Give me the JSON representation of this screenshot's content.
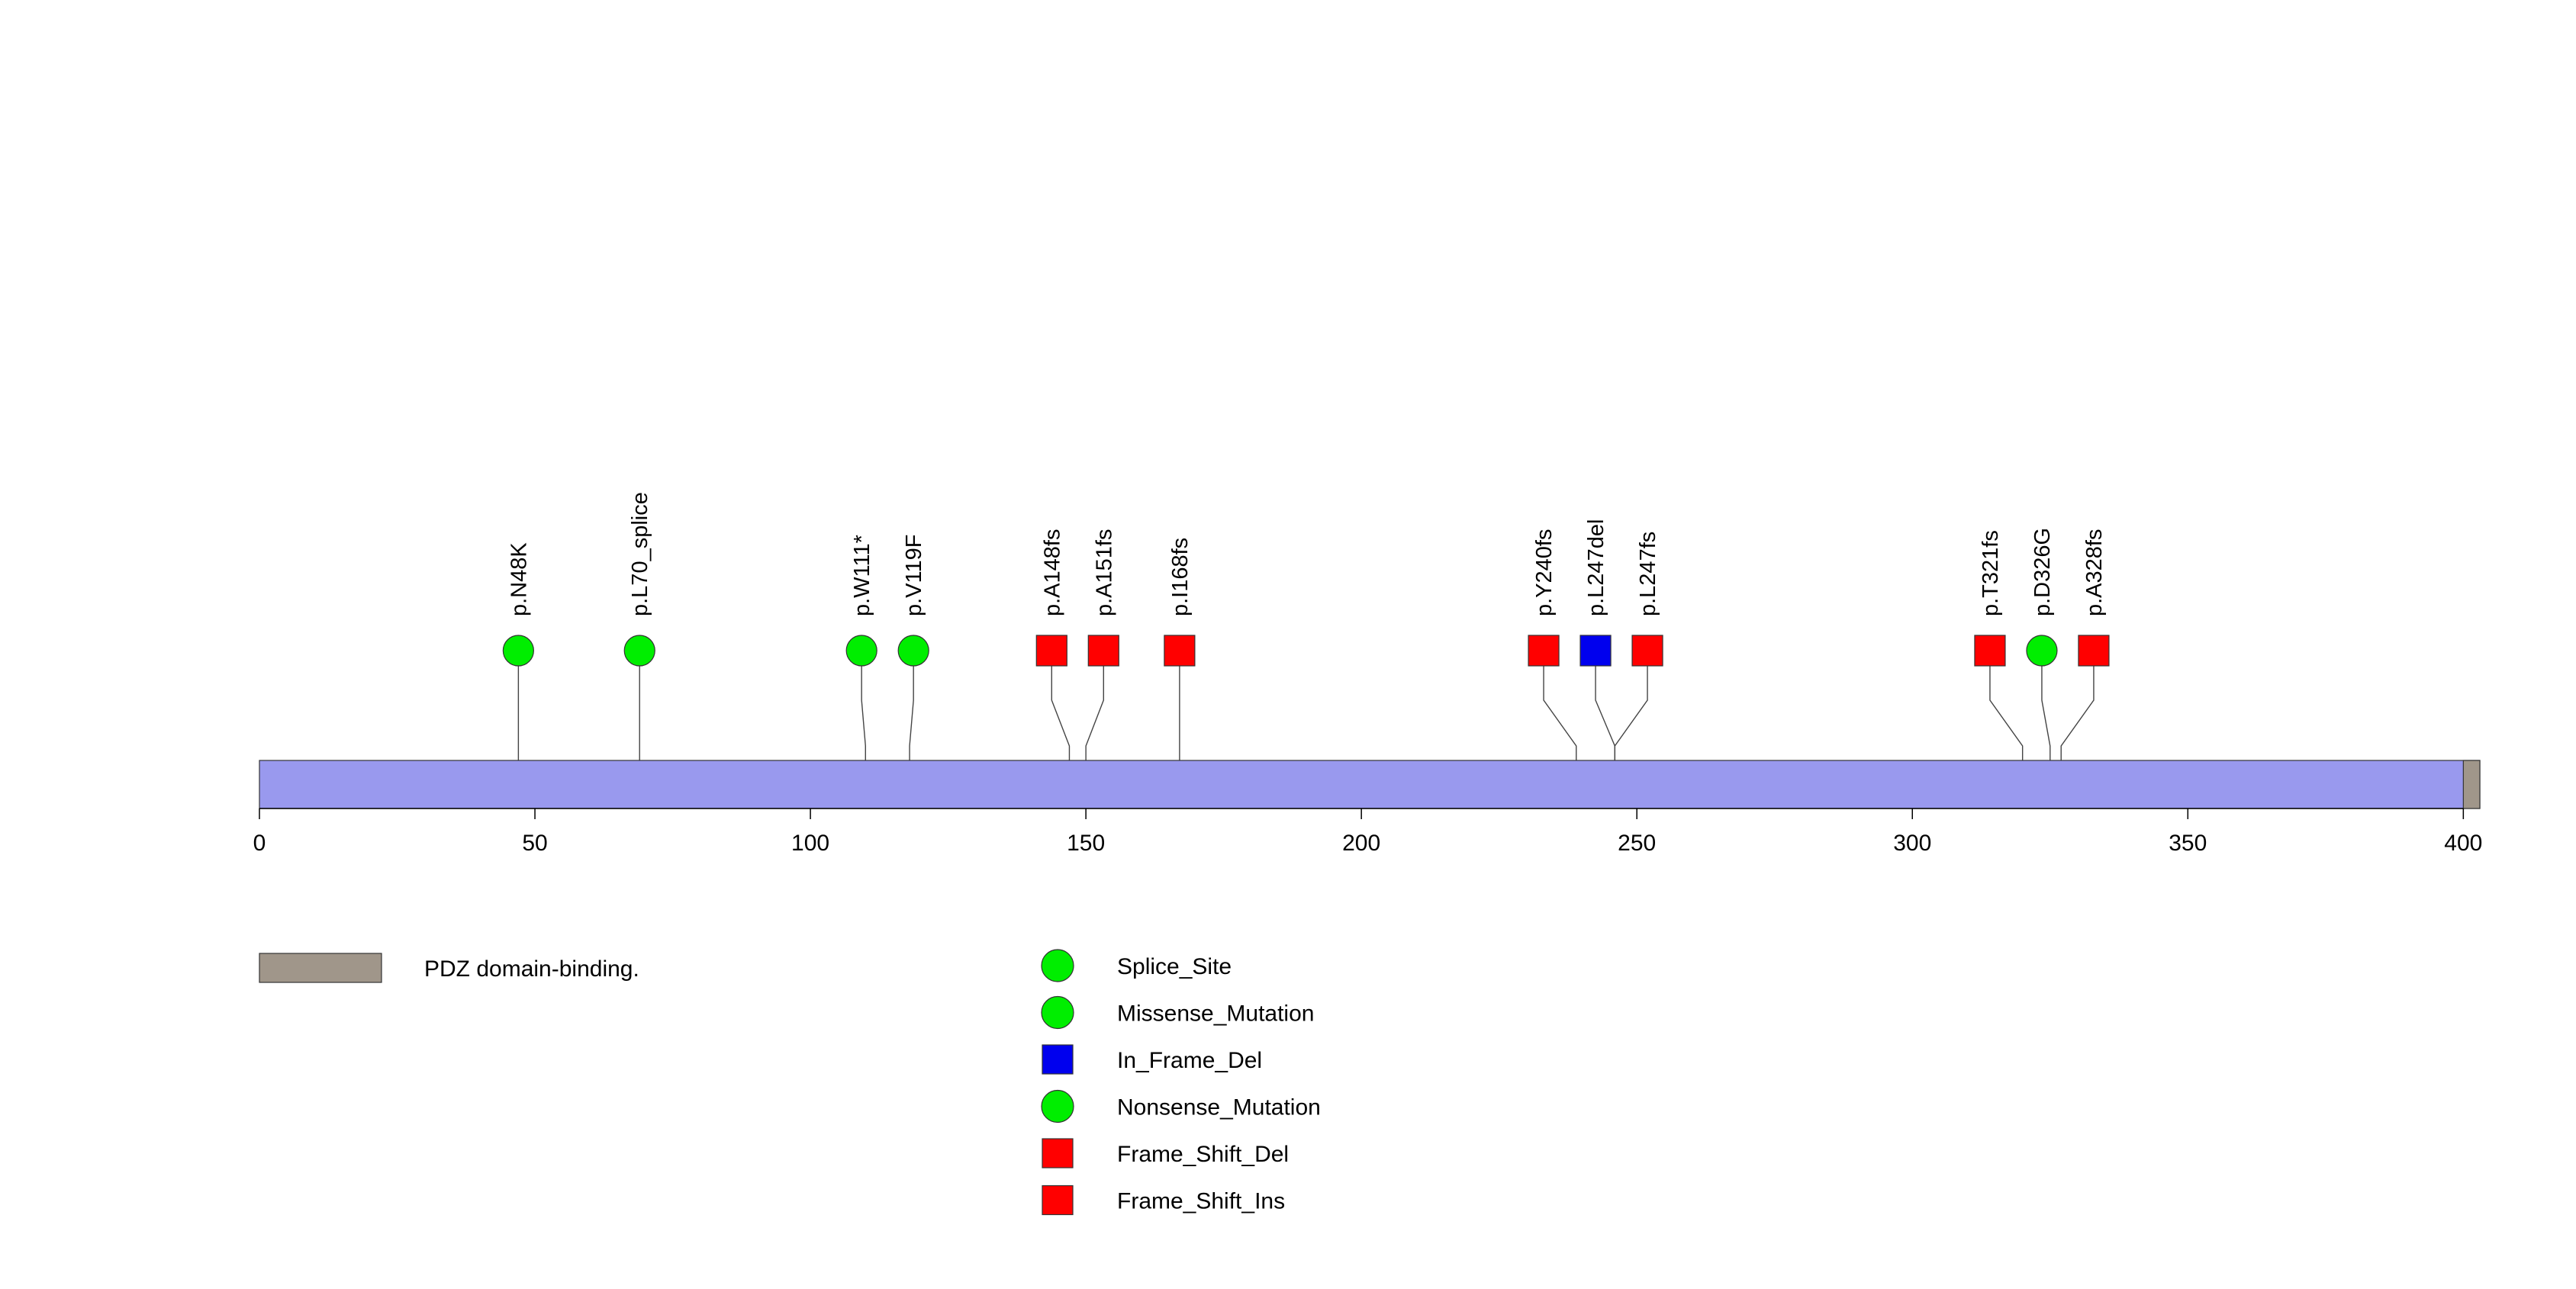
{
  "chart_data": {
    "type": "lollipop",
    "protein_length": 403,
    "xlim": [
      0,
      403
    ],
    "x_ticks": [
      0,
      50,
      100,
      150,
      200,
      250,
      300,
      350,
      400
    ],
    "x_tick_labels": [
      "0",
      "50",
      "100",
      "150",
      "200",
      "250",
      "300",
      "350",
      "400"
    ],
    "protein_color": "#9999ee",
    "domains": [
      {
        "name": "PDZ domain-binding.",
        "start": 400,
        "end": 403,
        "color": "#a0968a"
      }
    ],
    "mutations": [
      {
        "label": "p.N48K",
        "position": 47,
        "type": "Missense_Mutation",
        "color": "#00ee00",
        "shape": "circle"
      },
      {
        "label": "p.L70_splice",
        "position": 69,
        "type": "Splice_Site",
        "color": "#00ee00",
        "shape": "circle"
      },
      {
        "label": "p.W111*",
        "position": 110,
        "type": "Nonsense_Mutation",
        "color": "#00ee00",
        "shape": "circle"
      },
      {
        "label": "p.V119F",
        "position": 118,
        "type": "Missense_Mutation",
        "color": "#00ee00",
        "shape": "circle"
      },
      {
        "label": "p.A148fs",
        "position": 147,
        "type": "Frame_Shift_Del",
        "color": "#ff0000",
        "shape": "square"
      },
      {
        "label": "p.A151fs",
        "position": 150,
        "type": "Frame_Shift_Del",
        "color": "#ff0000",
        "shape": "square"
      },
      {
        "label": "p.I168fs",
        "position": 167,
        "type": "Frame_Shift_Del",
        "color": "#ff0000",
        "shape": "square"
      },
      {
        "label": "p.Y240fs",
        "position": 239,
        "type": "Frame_Shift_Del",
        "color": "#ff0000",
        "shape": "square"
      },
      {
        "label": "p.L247del",
        "position": 246,
        "type": "In_Frame_Del",
        "color": "#0000ee",
        "shape": "square"
      },
      {
        "label": "p.L247fs",
        "position": 246,
        "type": "Frame_Shift_Del",
        "color": "#ff0000",
        "shape": "square"
      },
      {
        "label": "p.T321fs",
        "position": 320,
        "type": "Frame_Shift_Ins",
        "color": "#ff0000",
        "shape": "square"
      },
      {
        "label": "p.D326G",
        "position": 325,
        "type": "Missense_Mutation",
        "color": "#00ee00",
        "shape": "circle"
      },
      {
        "label": "p.A328fs",
        "position": 327,
        "type": "Frame_Shift_Del",
        "color": "#ff0000",
        "shape": "square"
      }
    ],
    "domain_legend": [
      {
        "label": "PDZ domain-binding.",
        "color": "#a0968a"
      }
    ],
    "mutation_legend": [
      {
        "label": "Splice_Site",
        "color": "#00ee00",
        "shape": "circle"
      },
      {
        "label": "Missense_Mutation",
        "color": "#00ee00",
        "shape": "circle"
      },
      {
        "label": "In_Frame_Del",
        "color": "#0000ee",
        "shape": "square"
      },
      {
        "label": "Nonsense_Mutation",
        "color": "#00ee00",
        "shape": "circle"
      },
      {
        "label": "Frame_Shift_Del",
        "color": "#ff0000",
        "shape": "square"
      },
      {
        "label": "Frame_Shift_Ins",
        "color": "#ff0000",
        "shape": "square"
      }
    ]
  }
}
